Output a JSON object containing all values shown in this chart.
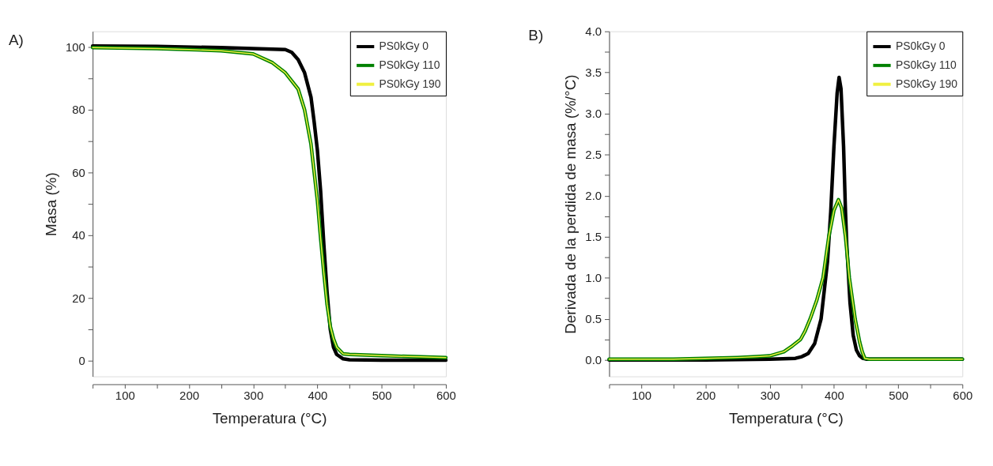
{
  "chart_data": [
    {
      "type": "line",
      "title": "A)",
      "xlabel": "Temperatura (°C)",
      "ylabel": "Masa (%)",
      "legend": "top right",
      "grid": false,
      "line_style": "solid",
      "xlim": [
        50,
        600
      ],
      "ylim": [
        -5,
        105
      ],
      "xticks": [
        {
          "value": 50,
          "label": null
        },
        100,
        {
          "value": 150,
          "label": null
        },
        200,
        {
          "value": 250,
          "label": null
        },
        300,
        {
          "value": 350,
          "label": null
        },
        400,
        {
          "value": 450,
          "label": null
        },
        500,
        {
          "value": 550,
          "label": null
        },
        600
      ],
      "yticks": [
        0,
        {
          "value": 10,
          "label": null
        },
        20,
        {
          "value": 30,
          "label": null
        },
        40,
        {
          "value": 50,
          "label": null
        },
        60,
        {
          "value": 70,
          "label": null
        },
        80,
        {
          "value": 90,
          "label": null
        },
        100
      ],
      "series": [
        {
          "name": "PS0kGy 0",
          "color": "#000000",
          "x": [
            50,
            150,
            250,
            300,
            350,
            360,
            370,
            380,
            390,
            395,
            400,
            405,
            410,
            415,
            420,
            425,
            430,
            440,
            450,
            500,
            600
          ],
          "values": [
            100.3,
            100.2,
            99.8,
            99.5,
            99.2,
            98.3,
            96,
            91.8,
            84,
            76,
            67,
            54,
            37,
            22,
            10,
            4.3,
            2,
            0.6,
            0.3,
            0.2,
            0.2
          ]
        },
        {
          "name": "PS0kGy 110",
          "color": "#008000",
          "x": [
            50,
            150,
            200,
            250,
            300,
            330,
            350,
            370,
            380,
            390,
            400,
            405,
            410,
            415,
            420,
            425,
            430,
            440,
            450,
            500,
            600
          ],
          "values": [
            99.8,
            99.5,
            99.2,
            98.8,
            97.8,
            95,
            91.8,
            86.6,
            80,
            69,
            51,
            39,
            28,
            18,
            11,
            7,
            4.3,
            2.2,
            2,
            1.6,
            1.0
          ]
        },
        {
          "name": "PS0kGy 190",
          "color": "#f0f040",
          "x": [
            50,
            150,
            200,
            250,
            300,
            330,
            350,
            370,
            380,
            390,
            400,
            405,
            410,
            415,
            420,
            425,
            430,
            440,
            450,
            500,
            600
          ],
          "values": [
            99.8,
            99.5,
            99.2,
            98.8,
            97.8,
            95,
            91.8,
            86.6,
            80,
            69,
            51,
            39,
            28,
            18,
            11,
            7,
            4.3,
            2.2,
            2,
            1.6,
            1.0
          ]
        }
      ]
    },
    {
      "type": "line",
      "title": "B)",
      "xlabel": "Temperatura (°C)",
      "ylabel": "Derivada de la perdida de masa (%/°C)",
      "legend": "top right",
      "grid": false,
      "line_style": "solid",
      "xlim": [
        50,
        600
      ],
      "ylim": [
        -0.2,
        4.0
      ],
      "xticks": [
        {
          "value": 50,
          "label": null
        },
        100,
        {
          "value": 150,
          "label": null
        },
        200,
        {
          "value": 250,
          "label": null
        },
        300,
        {
          "value": 350,
          "label": null
        },
        400,
        {
          "value": 450,
          "label": null
        },
        500,
        {
          "value": 550,
          "label": null
        },
        600
      ],
      "yticks": [
        {
          "value": 0,
          "label": "0.0"
        },
        {
          "value": 0.25,
          "label": null
        },
        0.5,
        {
          "value": 0.75,
          "label": null
        },
        {
          "value": 1,
          "label": "1.0"
        },
        {
          "value": 1.25,
          "label": null
        },
        1.5,
        {
          "value": 1.75,
          "label": null
        },
        {
          "value": 2,
          "label": "2.0"
        },
        {
          "value": 2.25,
          "label": null
        },
        2.5,
        {
          "value": 2.75,
          "label": null
        },
        {
          "value": 3,
          "label": "3.0"
        },
        {
          "value": 3.25,
          "label": null
        },
        3.5,
        {
          "value": 3.75,
          "label": null
        },
        {
          "value": 4,
          "label": "4.0"
        }
      ],
      "series": [
        {
          "name": "PS0kGy 0",
          "color": "#000000",
          "x": [
            50,
            200,
            300,
            340,
            350,
            360,
            370,
            380,
            390,
            395,
            400,
            405,
            408,
            411,
            415,
            418,
            420,
            425,
            430,
            435,
            440,
            445,
            450,
            600
          ],
          "values": [
            0.0,
            0.0,
            0.01,
            0.02,
            0.04,
            0.08,
            0.2,
            0.5,
            1.2,
            1.8,
            2.6,
            3.25,
            3.44,
            3.3,
            2.6,
            1.8,
            1.4,
            0.7,
            0.3,
            0.12,
            0.05,
            0.02,
            0.01,
            0.01
          ]
        },
        {
          "name": "PS0kGy 110",
          "color": "#008000",
          "x": [
            50,
            150,
            200,
            250,
            280,
            300,
            322,
            335,
            348,
            355,
            363,
            373,
            383,
            392,
            400,
            407,
            412,
            418,
            424,
            433,
            440,
            444,
            448,
            455,
            600
          ],
          "values": [
            0.01,
            0.01,
            0.02,
            0.03,
            0.04,
            0.05,
            0.1,
            0.17,
            0.25,
            0.35,
            0.5,
            0.72,
            1.0,
            1.5,
            1.82,
            1.95,
            1.85,
            1.5,
            1.0,
            0.5,
            0.22,
            0.1,
            0.02,
            0.01,
            0.01
          ]
        },
        {
          "name": "PS0kGy 190",
          "color": "#f0f040",
          "x": [
            50,
            150,
            200,
            250,
            280,
            300,
            322,
            335,
            348,
            355,
            363,
            373,
            383,
            392,
            400,
            407,
            412,
            418,
            424,
            433,
            440,
            444,
            448,
            455,
            600
          ],
          "values": [
            0.01,
            0.01,
            0.02,
            0.03,
            0.04,
            0.05,
            0.1,
            0.17,
            0.25,
            0.35,
            0.5,
            0.72,
            1.0,
            1.5,
            1.82,
            1.95,
            1.85,
            1.5,
            1.0,
            0.5,
            0.22,
            0.1,
            0.02,
            0.01,
            0.01
          ]
        }
      ]
    }
  ]
}
